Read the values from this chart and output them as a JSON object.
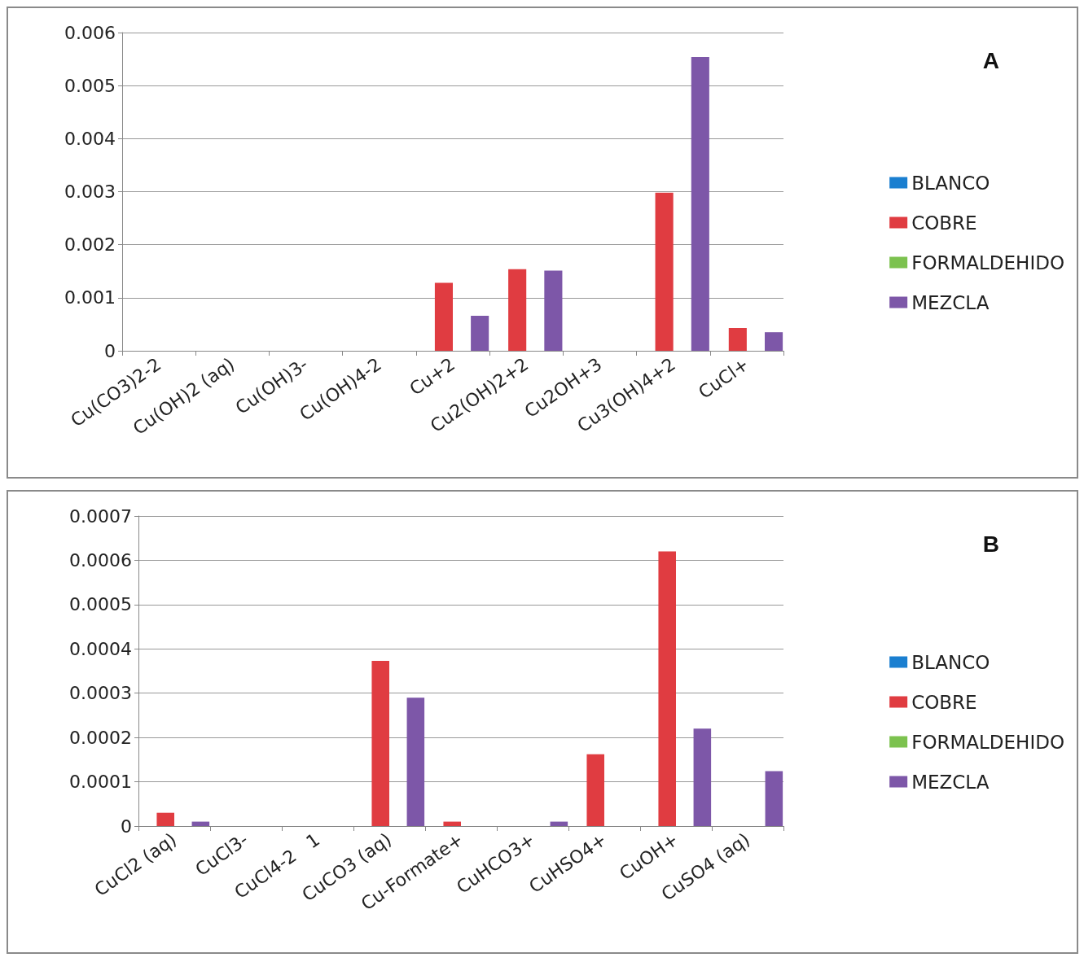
{
  "chart_data": [
    {
      "type": "bar",
      "annotations": [
        "A"
      ],
      "categories": [
        "Cu(CO3)2-2",
        "Cu(OH)2 (aq)",
        "Cu(OH)3-",
        "Cu(OH)4-2",
        "Cu+2",
        "Cu2(OH)2+2",
        "Cu2OH+3",
        "Cu3(OH)4+2",
        "CuCl+"
      ],
      "series": [
        {
          "name": "BLANCO",
          "color": "#1a7fd0",
          "values": [
            0,
            0,
            0,
            0,
            0,
            0,
            0,
            0,
            0
          ]
        },
        {
          "name": "COBRE",
          "color": "#e03c41",
          "values": [
            0,
            0,
            0,
            0,
            0.00128,
            0.00154,
            0,
            0.00298,
            0.00043
          ]
        },
        {
          "name": "FORMALDEHIDO",
          "color": "#7cc24f",
          "values": [
            0,
            0,
            0,
            0,
            0,
            0,
            0,
            0,
            0
          ]
        },
        {
          "name": "MEZCLA",
          "color": "#7d57a8",
          "values": [
            0,
            0,
            0,
            0,
            0.00066,
            0.00151,
            0,
            0.00554,
            0.00035
          ]
        }
      ],
      "ylim": [
        0,
        0.006
      ],
      "yticks": [
        0,
        0.001,
        0.002,
        0.003,
        0.004,
        0.005,
        0.006
      ],
      "grid": "y",
      "legend": "right"
    },
    {
      "type": "bar",
      "annotations": [
        "B"
      ],
      "categories": [
        "CuCl2 (aq)",
        "CuCl3-",
        "CuCl4-2   1",
        "CuCO3 (aq)",
        "Cu-Formate+",
        "CuHCO3+",
        "CuHSO4+",
        "CuOH+",
        "CuSO4 (aq)"
      ],
      "series": [
        {
          "name": "BLANCO",
          "color": "#1a7fd0",
          "values": [
            0,
            0,
            0,
            0,
            0,
            0,
            0,
            0,
            0
          ]
        },
        {
          "name": "COBRE",
          "color": "#e03c41",
          "values": [
            3e-05,
            0,
            0,
            0.000373,
            1e-05,
            0,
            0.000162,
            0.00062,
            0
          ]
        },
        {
          "name": "FORMALDEHIDO",
          "color": "#7cc24f",
          "values": [
            0,
            0,
            0,
            0,
            0,
            0,
            0,
            0,
            0
          ]
        },
        {
          "name": "MEZCLA",
          "color": "#7d57a8",
          "values": [
            1e-05,
            0,
            0,
            0.00029,
            0,
            1e-05,
            0,
            0.00022,
            0.000124
          ]
        }
      ],
      "ylim": [
        0,
        0.0007
      ],
      "yticks": [
        0,
        0.0001,
        0.0002,
        0.0003,
        0.0004,
        0.0005,
        0.0006,
        0.0007
      ],
      "grid": "y",
      "legend": "right"
    }
  ]
}
